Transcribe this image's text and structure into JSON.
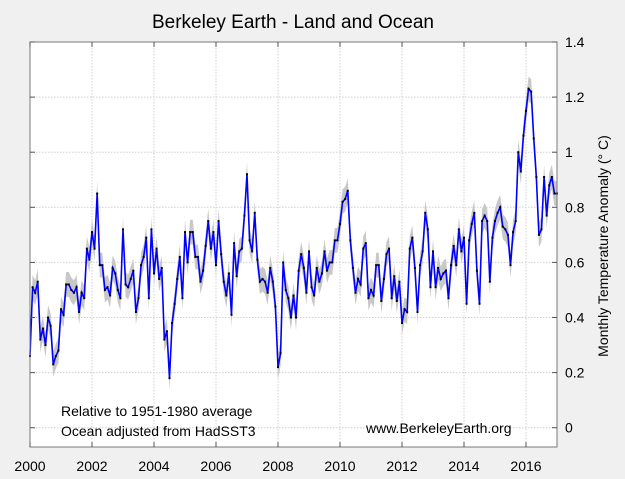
{
  "chart_data": {
    "type": "line",
    "title": "Berkeley Earth - Land and Ocean",
    "xlabel": "",
    "ylabel": "Monthly Temperature Anomaly (° C)",
    "xlim": [
      2000,
      2017
    ],
    "ylim": [
      -0.07,
      1.4
    ],
    "x_ticks": [
      2000,
      2002,
      2004,
      2006,
      2008,
      2010,
      2012,
      2014,
      2016
    ],
    "x_tick_labels": [
      "2000",
      "2002",
      "2004",
      "2006",
      "2008",
      "2010",
      "2012",
      "2014",
      "2016"
    ],
    "y_ticks": [
      0,
      0.2,
      0.4,
      0.6,
      0.8,
      1,
      1.2,
      1.4
    ],
    "y_tick_labels": [
      "0",
      "0.2",
      "0.4",
      "0.6",
      "0.8",
      "1",
      "1.2",
      "1.4"
    ],
    "y_axis_side": "right",
    "grid": true,
    "start": "2000-01",
    "frequency": "monthly",
    "series": [
      {
        "color": "#0000ff",
        "marker_color": "#000000",
        "band_color": "#c8c8c8",
        "uncertainty": 0.045,
        "values": [
          0.26,
          0.51,
          0.49,
          0.53,
          0.32,
          0.36,
          0.3,
          0.4,
          0.37,
          0.23,
          0.26,
          0.28,
          0.43,
          0.41,
          0.52,
          0.52,
          0.5,
          0.49,
          0.51,
          0.42,
          0.49,
          0.47,
          0.65,
          0.61,
          0.71,
          0.65,
          0.85,
          0.59,
          0.59,
          0.5,
          0.51,
          0.48,
          0.58,
          0.56,
          0.5,
          0.47,
          0.72,
          0.52,
          0.51,
          0.54,
          0.57,
          0.42,
          0.47,
          0.59,
          0.62,
          0.69,
          0.47,
          0.72,
          0.56,
          0.65,
          0.54,
          0.58,
          0.32,
          0.35,
          0.18,
          0.38,
          0.45,
          0.54,
          0.62,
          0.47,
          0.71,
          0.6,
          0.71,
          0.71,
          0.62,
          0.62,
          0.53,
          0.57,
          0.66,
          0.75,
          0.65,
          0.71,
          0.59,
          0.75,
          0.63,
          0.53,
          0.48,
          0.56,
          0.41,
          0.67,
          0.55,
          0.64,
          0.65,
          0.77,
          0.92,
          0.68,
          0.64,
          0.78,
          0.61,
          0.53,
          0.54,
          0.53,
          0.49,
          0.58,
          0.53,
          0.44,
          0.22,
          0.27,
          0.6,
          0.5,
          0.47,
          0.4,
          0.48,
          0.4,
          0.57,
          0.63,
          0.58,
          0.49,
          0.64,
          0.51,
          0.48,
          0.58,
          0.53,
          0.56,
          0.64,
          0.57,
          0.6,
          0.6,
          0.68,
          0.68,
          0.74,
          0.82,
          0.83,
          0.86,
          0.68,
          0.58,
          0.49,
          0.54,
          0.52,
          0.65,
          0.67,
          0.47,
          0.5,
          0.48,
          0.59,
          0.59,
          0.46,
          0.54,
          0.63,
          0.65,
          0.47,
          0.55,
          0.46,
          0.53,
          0.38,
          0.43,
          0.42,
          0.65,
          0.69,
          0.58,
          0.42,
          0.59,
          0.64,
          0.78,
          0.72,
          0.51,
          0.64,
          0.51,
          0.58,
          0.54,
          0.56,
          0.57,
          0.47,
          0.59,
          0.66,
          0.59,
          0.72,
          0.64,
          0.69,
          0.45,
          0.68,
          0.74,
          0.78,
          0.57,
          0.45,
          0.75,
          0.77,
          0.75,
          0.53,
          0.69,
          0.75,
          0.78,
          0.8,
          0.73,
          0.72,
          0.7,
          0.59,
          0.71,
          0.75,
          1.0,
          0.93,
          1.06,
          1.15,
          1.23,
          1.22,
          1.05,
          0.91,
          0.7,
          0.72,
          0.91,
          0.77,
          0.88,
          0.91,
          0.85,
          0.85
        ]
      }
    ],
    "annotations": [
      "Relative to 1951-1980 average",
      "Ocean adjusted from HadSST3",
      "www.BerkeleyEarth.org"
    ]
  }
}
